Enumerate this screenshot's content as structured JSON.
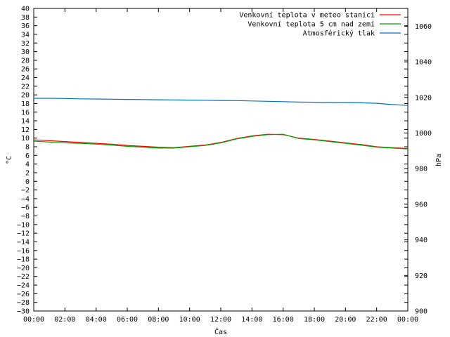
{
  "chart_data": {
    "type": "line",
    "xlabel": "Čas",
    "ylabel": "°C",
    "y2label": "hPa",
    "ylim": [
      -30,
      40
    ],
    "y2lim": [
      900,
      1070
    ],
    "xticks": [
      "00:00",
      "02:00",
      "04:00",
      "06:00",
      "08:00",
      "10:00",
      "12:00",
      "14:00",
      "16:00",
      "18:00",
      "20:00",
      "22:00",
      "00:00"
    ],
    "yticks": [
      40,
      38,
      36,
      34,
      32,
      30,
      28,
      26,
      24,
      22,
      20,
      18,
      16,
      14,
      12,
      10,
      8,
      6,
      4,
      2,
      0,
      -2,
      -4,
      -6,
      -8,
      -10,
      -12,
      -14,
      -16,
      -18,
      -20,
      -22,
      -24,
      -26,
      -28,
      -30
    ],
    "y2ticks": [
      1060,
      1040,
      1020,
      1000,
      980,
      960,
      940,
      920,
      900
    ],
    "legend_position": "top-right",
    "grid": false,
    "x": [
      0,
      1,
      2,
      3,
      4,
      5,
      6,
      7,
      8,
      9,
      10,
      11,
      12,
      13,
      14,
      15,
      16,
      17,
      18,
      19,
      20,
      21,
      22,
      23,
      24
    ],
    "series": [
      {
        "name": "Venkovní teplota v meteo stanici",
        "color": "#ff0000",
        "axis": "left",
        "values": [
          9.6,
          9.4,
          9.2,
          9.0,
          8.8,
          8.6,
          8.3,
          8.1,
          7.9,
          7.8,
          8.1,
          8.4,
          9.0,
          9.9,
          10.5,
          10.9,
          10.8,
          10.0,
          9.7,
          9.3,
          8.9,
          8.5,
          8.0,
          7.8,
          7.6
        ]
      },
      {
        "name": "Venkovní teplota 5 cm nad zemí",
        "color": "#00a000",
        "axis": "left",
        "values": [
          9.3,
          9.1,
          8.9,
          8.8,
          8.6,
          8.4,
          8.1,
          7.9,
          7.7,
          7.7,
          8.0,
          8.3,
          8.9,
          9.8,
          10.4,
          10.8,
          10.9,
          9.9,
          9.6,
          9.2,
          8.8,
          8.4,
          7.9,
          7.7,
          7.5
        ]
      },
      {
        "name": "Atmosférický tlak",
        "color": "#0070c0",
        "axis": "right",
        "values": [
          1019.5,
          1019.5,
          1019.4,
          1019.2,
          1019.1,
          1019.0,
          1018.9,
          1018.8,
          1018.7,
          1018.6,
          1018.5,
          1018.4,
          1018.3,
          1018.2,
          1018.0,
          1017.8,
          1017.6,
          1017.4,
          1017.3,
          1017.2,
          1017.1,
          1017.0,
          1016.7,
          1016.0,
          1015.5
        ]
      }
    ]
  }
}
